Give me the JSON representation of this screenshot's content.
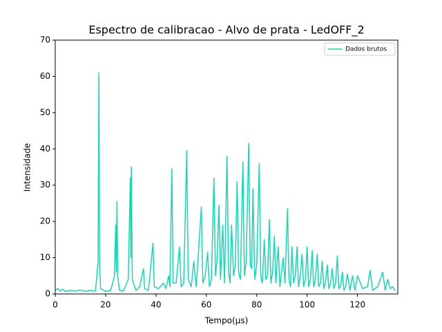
{
  "chart_data": {
    "type": "line",
    "title": "Espectro de calibracao - Alvo de prata - LedOFF_2",
    "xlabel": "Tempo(μs)",
    "ylabel": "Intensidade",
    "x": [
      0,
      1,
      2,
      3,
      4,
      6,
      8,
      10,
      12,
      14,
      16,
      17,
      17.3,
      17.6,
      18,
      20,
      22,
      23.5,
      24,
      24.2,
      24.5,
      24.8,
      25.5,
      27,
      29,
      29.8,
      30,
      30.2,
      30.6,
      32,
      33.5,
      35,
      35.5,
      37,
      38.8,
      39.3,
      41,
      43,
      44,
      45,
      45.5,
      46.3,
      46.8,
      48,
      49.3,
      50,
      51,
      52.2,
      52.8,
      54,
      55,
      56,
      58,
      58.6,
      59.5,
      60.5,
      61.2,
      62,
      63,
      63.6,
      64.2,
      65,
      65.6,
      66.5,
      67.2,
      68.2,
      68.8,
      69.4,
      70,
      70.8,
      71.5,
      72.2,
      72.8,
      73.5,
      74.5,
      75.1,
      75.8,
      76.8,
      77.4,
      78,
      78.5,
      79.2,
      80,
      81,
      81.6,
      82.2,
      83,
      83.6,
      84.3,
      85,
      85.6,
      86.3,
      87,
      87.6,
      88.5,
      89.2,
      90.5,
      91.2,
      92.2,
      92.8,
      93.4,
      94,
      94.6,
      95.3,
      96,
      96.6,
      97.3,
      98,
      98.6,
      99.3,
      100,
      100.6,
      101.3,
      102,
      102.6,
      103.3,
      104,
      104.6,
      105.3,
      106,
      106.6,
      107.3,
      108,
      108.6,
      109.3,
      110,
      110.6,
      111.3,
      112,
      112.6,
      113.3,
      114,
      114.6,
      115.3,
      116,
      117,
      118,
      119,
      120,
      122,
      124,
      125,
      126,
      128,
      130,
      131,
      132,
      133,
      134,
      135
    ],
    "series": [
      {
        "name": "Dados brutos",
        "color": "#14d8b4",
        "values": [
          1,
          1.5,
          0.8,
          1.3,
          0.7,
          1,
          0.8,
          1.1,
          0.7,
          1,
          0.8,
          9,
          61,
          8,
          1.5,
          0.7,
          1,
          5,
          19,
          6,
          25.5,
          5,
          1,
          0.8,
          4,
          32,
          10,
          35,
          4,
          1,
          2,
          7,
          1.5,
          1,
          14,
          2,
          1.5,
          3,
          1.5,
          5,
          2,
          34.5,
          3,
          3,
          13,
          2,
          3,
          39.5,
          4,
          2,
          9,
          2,
          24,
          3,
          5,
          11.5,
          2,
          4,
          32,
          5,
          9,
          24.5,
          4,
          19,
          3,
          38,
          6,
          3,
          19,
          5,
          8,
          31,
          6,
          4,
          36.5,
          5,
          9,
          41.5,
          8,
          7,
          29,
          4,
          8,
          36,
          5,
          3,
          15,
          4,
          5,
          20.5,
          3,
          6,
          16,
          3,
          13,
          2,
          10,
          3,
          23.5,
          4,
          2,
          13,
          3,
          5,
          13,
          2,
          5,
          11,
          2,
          4,
          13,
          2,
          4,
          12,
          2,
          4,
          11,
          2,
          3,
          9,
          1.5,
          3,
          8,
          1.5,
          3,
          7,
          1.5,
          3,
          10.5,
          1.5,
          2,
          6,
          1,
          2,
          5.5,
          1,
          5,
          1,
          5,
          1.5,
          2,
          6.5,
          1,
          2,
          6,
          1,
          4,
          1.5,
          2,
          0.8
        ]
      }
    ],
    "xlim": [
      0,
      136
    ],
    "ylim": [
      0,
      70
    ],
    "xticks": [
      0,
      20,
      40,
      60,
      80,
      100,
      120
    ],
    "yticks": [
      0,
      10,
      20,
      30,
      40,
      50,
      60,
      70
    ],
    "legend": "upper right"
  }
}
